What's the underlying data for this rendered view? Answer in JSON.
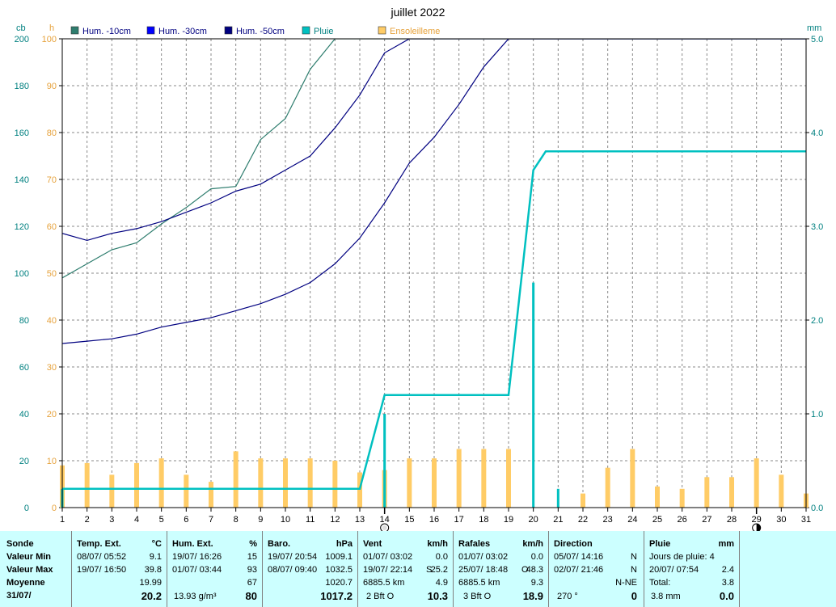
{
  "chart_data": {
    "type": "line",
    "title": "juillet 2022",
    "units": {
      "left_outer": "cb",
      "left_inner": "h",
      "right": "mm"
    },
    "x": [
      1,
      2,
      3,
      4,
      5,
      6,
      7,
      8,
      9,
      10,
      11,
      12,
      13,
      14,
      15,
      16,
      17,
      18,
      19,
      20,
      21,
      22,
      23,
      24,
      25,
      26,
      27,
      28,
      29,
      30,
      31
    ],
    "xlim": [
      1,
      31
    ],
    "ylim_cb": [
      0,
      200
    ],
    "ylim_h": [
      0,
      100
    ],
    "ylim_mm": [
      0,
      5
    ],
    "yticks_cb": [
      0,
      20,
      40,
      60,
      80,
      100,
      120,
      140,
      160,
      180,
      200
    ],
    "yticks_h": [
      0,
      10,
      20,
      30,
      40,
      50,
      60,
      70,
      80,
      90,
      100
    ],
    "yticks_mm": [
      "0.0",
      "1.0",
      "2.0",
      "3.0",
      "4.0",
      "5.0"
    ],
    "grid": true,
    "legend": [
      {
        "label": "Hum. -10cm",
        "color": "#2e7d6e"
      },
      {
        "label": "Hum. -30cm",
        "color": "#0000ff"
      },
      {
        "label": "Hum. -50cm",
        "color": "#000080"
      },
      {
        "label": "Pluie",
        "color": "#00c0c0"
      },
      {
        "label": "Ensoleilleme",
        "color": "#ffcc66"
      }
    ],
    "series": [
      {
        "name": "Hum. -10cm",
        "unit": "cb",
        "color": "#2e7d6e",
        "points": [
          [
            1,
            98
          ],
          [
            2,
            104
          ],
          [
            3,
            110
          ],
          [
            4,
            113
          ],
          [
            5,
            121
          ],
          [
            6,
            128
          ],
          [
            7,
            136
          ],
          [
            8,
            137
          ],
          [
            9,
            157
          ],
          [
            10,
            166
          ],
          [
            11,
            187
          ],
          [
            12,
            200
          ],
          [
            31,
            200
          ]
        ]
      },
      {
        "name": "Hum. -30cm",
        "unit": "cb",
        "color": "#000080",
        "points": [
          [
            1,
            117
          ],
          [
            2,
            114
          ],
          [
            3,
            117
          ],
          [
            4,
            119
          ],
          [
            5,
            122
          ],
          [
            6,
            126
          ],
          [
            7,
            130
          ],
          [
            8,
            135
          ],
          [
            9,
            138
          ],
          [
            10,
            144
          ],
          [
            11,
            150
          ],
          [
            12,
            162
          ],
          [
            13,
            176
          ],
          [
            14,
            194
          ],
          [
            15,
            208
          ],
          [
            16,
            216
          ],
          [
            17,
            220
          ],
          [
            31,
            220
          ]
        ]
      },
      {
        "name": "Hum. -50cm",
        "unit": "cb",
        "color": "#000080",
        "points": [
          [
            1,
            70
          ],
          [
            2,
            71
          ],
          [
            3,
            72
          ],
          [
            4,
            74
          ],
          [
            5,
            77
          ],
          [
            6,
            79
          ],
          [
            7,
            81
          ],
          [
            8,
            84
          ],
          [
            9,
            87
          ],
          [
            10,
            91
          ],
          [
            11,
            96
          ],
          [
            12,
            104
          ],
          [
            13,
            115
          ],
          [
            14,
            130
          ],
          [
            15,
            147
          ],
          [
            16,
            158
          ],
          [
            17,
            172
          ],
          [
            18,
            188
          ],
          [
            19,
            206
          ],
          [
            20,
            227
          ],
          [
            21,
            230
          ],
          [
            31,
            230
          ]
        ]
      },
      {
        "name": "Pluie",
        "unit": "mm",
        "color": "#00c0c0",
        "cumulative": [
          [
            1,
            0.2
          ],
          [
            13,
            0.2
          ],
          [
            14,
            1.2
          ],
          [
            19,
            1.2
          ],
          [
            20,
            3.6
          ],
          [
            20.5,
            3.8
          ],
          [
            31,
            3.8
          ]
        ],
        "daily": [
          [
            1,
            0.2
          ],
          [
            14,
            1.0
          ],
          [
            20,
            2.4
          ],
          [
            21,
            0.2
          ]
        ]
      },
      {
        "name": "Ensoleilleme",
        "unit": "h",
        "color": "#ffcc66",
        "values": [
          9,
          9.5,
          7,
          9.5,
          10.5,
          7,
          5.5,
          12,
          10.5,
          10.5,
          10.5,
          10,
          7.5,
          8,
          10.5,
          10.5,
          12.5,
          12.5,
          12.5,
          0,
          0,
          3,
          8.5,
          12.5,
          4.5,
          4,
          6.5,
          6.5,
          10.5,
          7,
          3
        ]
      }
    ],
    "moon_markers": [
      {
        "x": 14,
        "phase": "new"
      },
      {
        "x": 29,
        "phase": "full"
      }
    ]
  },
  "stats": {
    "sonde": {
      "h": "Sonde",
      "l1": "Valeur Min",
      "l2": "Valeur Max",
      "l3": "Moyenne",
      "l4": "31/07/"
    },
    "temp": {
      "h": "Temp. Ext.",
      "u": "°C",
      "min_t": "08/07/ 05:52",
      "min_v": "9.1",
      "max_t": "19/07/ 16:50",
      "max_v": "39.8",
      "avg": "19.99",
      "cur": "20.2"
    },
    "hum": {
      "h": "Hum. Ext.",
      "u": "%",
      "min_t": "19/07/ 16:26",
      "min_v": "15",
      "max_t": "01/07/ 03:44",
      "max_v": "93",
      "avg": "67",
      "extra": "13.93 g/m³",
      "cur": "80"
    },
    "baro": {
      "h": "Baro.",
      "u": "hPa",
      "min_t": "19/07/ 20:54",
      "min_v": "1009.1",
      "max_t": "08/07/ 09:40",
      "max_v": "1032.5",
      "avg": "1020.7",
      "cur": "1017.2"
    },
    "vent": {
      "h": "Vent",
      "u": "km/h",
      "min_t": "01/07/ 03:02",
      "min_v": "0.0",
      "max_t": "19/07/ 22:14",
      "max_d": "S",
      "max_v": "25.2",
      "dist": "6885.5 km",
      "avg": "4.9",
      "bft": "2 Bft O",
      "cur": "10.3"
    },
    "rafales": {
      "h": "Rafales",
      "u": "km/h",
      "min_t": "01/07/ 03:02",
      "min_v": "0.0",
      "max_t": "25/07/ 18:48",
      "max_d": "O",
      "max_v": "48.3",
      "dist": "6885.5 km",
      "avg": "9.3",
      "bft": "3 Bft O",
      "cur": "18.9"
    },
    "dir": {
      "h": "Direction",
      "t1": "05/07/ 14:16",
      "d1": "N",
      "t2": "02/07/ 21:46",
      "d2": "N",
      "avg": "N-NE",
      "deg": "270 °",
      "cur": "0"
    },
    "pluie": {
      "h": "Pluie",
      "u": "mm",
      "jours": "Jours de pluie: 4",
      "max_t": "20/07/ 07:54",
      "max_v": "2.4",
      "total_l": "Total:",
      "total_v": "3.8",
      "cur_l": "3.8 mm",
      "cur": "0.0"
    }
  }
}
